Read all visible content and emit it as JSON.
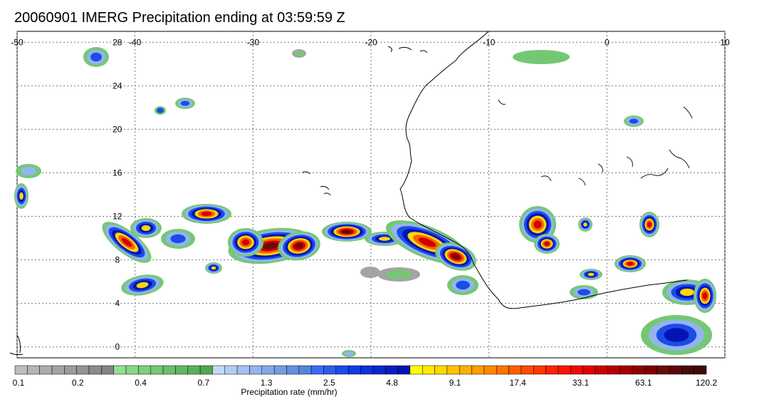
{
  "title": "20060901 IMERG Precipitation ending at 03:59:59 Z",
  "map": {
    "lon_range": [
      -50,
      10
    ],
    "lat_range": [
      -1,
      29
    ],
    "lon_ticks": [
      "-50",
      "-40",
      "-30",
      "-20",
      "-10",
      "0",
      "10"
    ],
    "lat_ticks": [
      "28",
      "24",
      "20",
      "16",
      "12",
      "8",
      "4",
      "0"
    ]
  },
  "colorbar": {
    "label": "Precipitation rate (mm/hr)",
    "tick_labels": [
      "0.1",
      "0.2",
      "0.4",
      "0.7",
      "1.3",
      "2.5",
      "4.8",
      "9.1",
      "17.4",
      "33.1",
      "63.1",
      "120.2"
    ],
    "colors": [
      "#bdbdbd",
      "#b4b4b4",
      "#acacac",
      "#a4a4a4",
      "#9c9c9c",
      "#949494",
      "#8c8c8c",
      "#848484",
      "#8fe08f",
      "#86d886",
      "#7dd07d",
      "#74c874",
      "#6bc06b",
      "#62b862",
      "#59b059",
      "#50a850",
      "#c4d8f8",
      "#b4ccf4",
      "#a4c0f0",
      "#94b4ec",
      "#84a8e8",
      "#749ce4",
      "#6490e0",
      "#5484dc",
      "#3c6cf0",
      "#2c5cec",
      "#1c4ce8",
      "#0c3ce4",
      "#0a32d8",
      "#0828cc",
      "#061ec0",
      "#0414b4",
      "#ffff00",
      "#ffeb00",
      "#ffd700",
      "#ffc300",
      "#ffaf00",
      "#ff9b00",
      "#ff8700",
      "#ff7300",
      "#ff5f00",
      "#ff4b00",
      "#ff3700",
      "#ff2300",
      "#ff1400",
      "#f00a00",
      "#e00000",
      "#cc0000",
      "#b80000",
      "#a40000",
      "#900000",
      "#7c0000",
      "#6a0a0a",
      "#5a0a0a",
      "#4a0a0a",
      "#3c0a0a"
    ]
  }
}
